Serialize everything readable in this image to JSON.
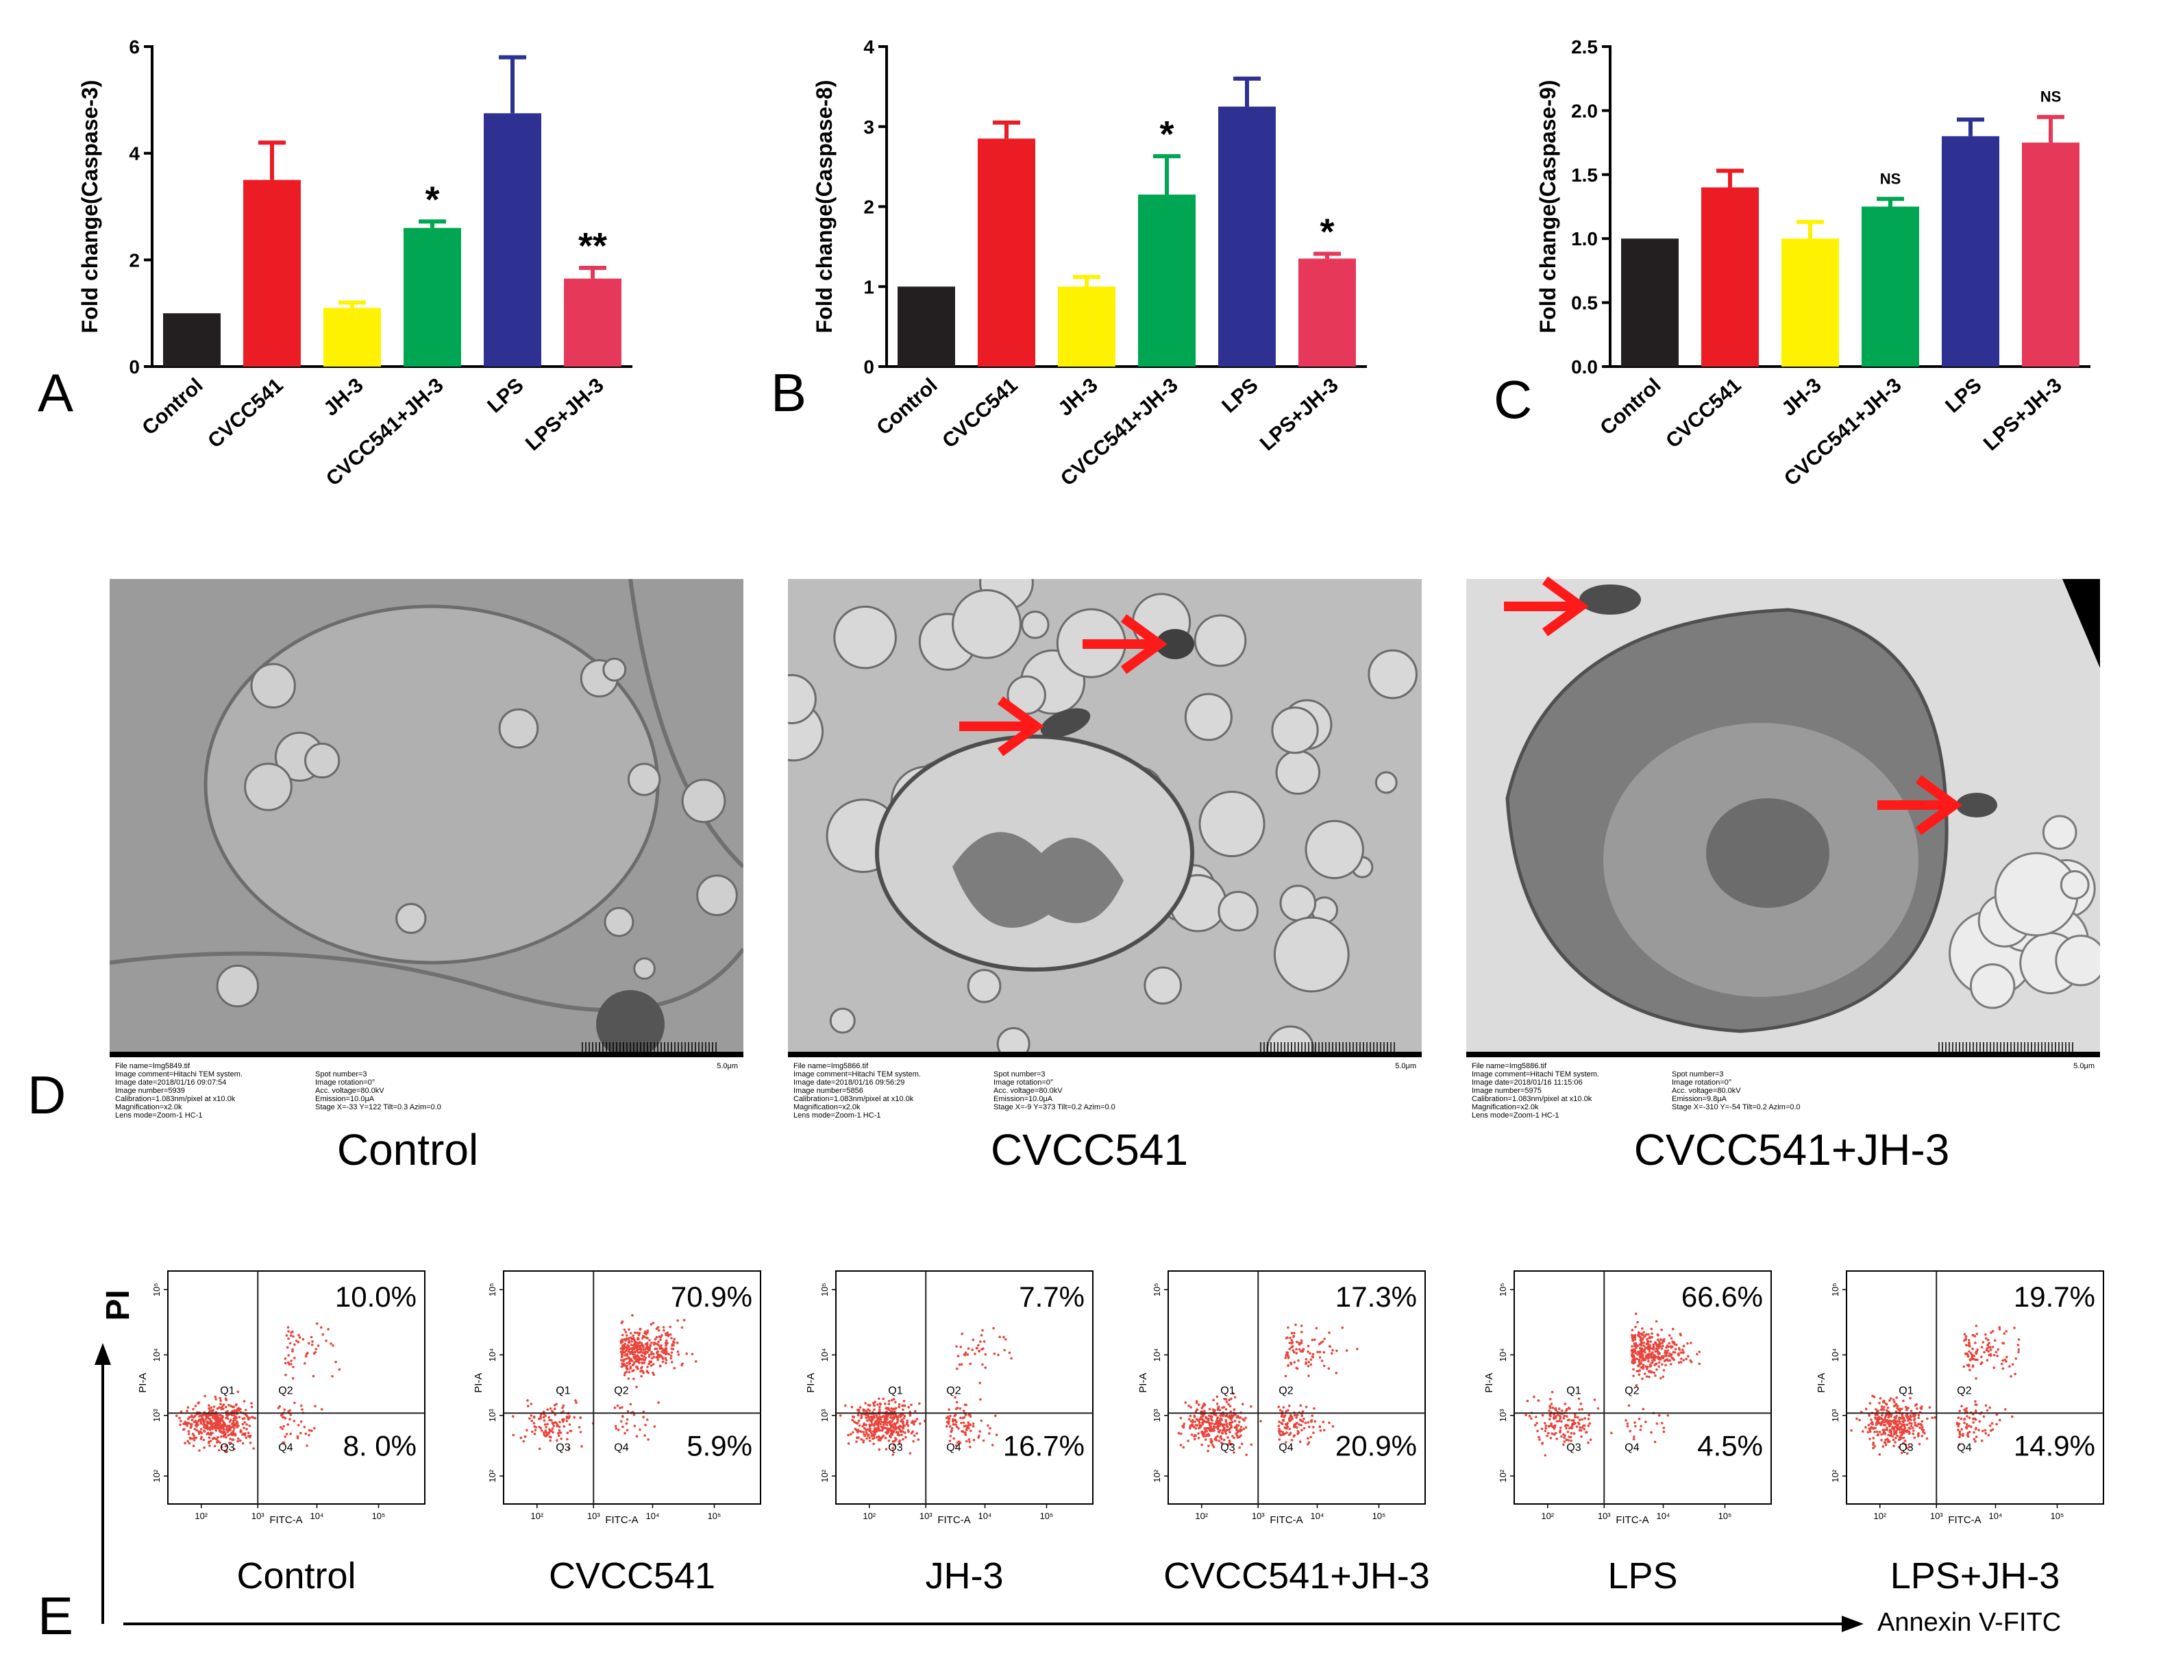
{
  "chart_data": [
    {
      "type": "bar",
      "panel": "A",
      "ylabel": "Fold change(Caspase-3)",
      "ylim": [
        0,
        6
      ],
      "yticks": [
        "0",
        "2",
        "4",
        "6"
      ],
      "categories": [
        "Control",
        "CVCC541",
        "JH-3",
        "CVCC541+JH-3",
        "LPS",
        "LPS+JH-3"
      ],
      "values": [
        1.0,
        3.5,
        1.1,
        2.6,
        4.75,
        1.65
      ],
      "errors": [
        0.0,
        0.7,
        0.1,
        0.12,
        1.05,
        0.2
      ],
      "significance": [
        "",
        "",
        "",
        "*",
        "",
        "**"
      ],
      "colors": [
        "#231f20",
        "#ec1c24",
        "#fff200",
        "#00a651",
        "#2e3192",
        "#e6395a"
      ]
    },
    {
      "type": "bar",
      "panel": "B",
      "ylabel": "Fold change(Caspase-8)",
      "ylim": [
        0,
        4
      ],
      "yticks": [
        "0",
        "1",
        "2",
        "3",
        "4"
      ],
      "categories": [
        "Control",
        "CVCC541",
        "JH-3",
        "CVCC541+JH-3",
        "LPS",
        "LPS+JH-3"
      ],
      "values": [
        1.0,
        2.85,
        1.0,
        2.15,
        3.25,
        1.35
      ],
      "errors": [
        0.0,
        0.2,
        0.12,
        0.48,
        0.35,
        0.06
      ],
      "significance": [
        "",
        "",
        "",
        "*",
        "",
        "*"
      ],
      "colors": [
        "#231f20",
        "#ec1c24",
        "#fff200",
        "#00a651",
        "#2e3192",
        "#e6395a"
      ]
    },
    {
      "type": "bar",
      "panel": "C",
      "ylabel": "Fold change(Caspase-9)",
      "ylim": [
        0,
        2.5
      ],
      "yticks": [
        "0.0",
        "0.5",
        "1.0",
        "1.5",
        "2.0",
        "2.5"
      ],
      "categories": [
        "Control",
        "CVCC541",
        "JH-3",
        "CVCC541+JH-3",
        "LPS",
        "LPS+JH-3"
      ],
      "values": [
        1.0,
        1.4,
        1.0,
        1.25,
        1.8,
        1.75
      ],
      "errors": [
        0.0,
        0.13,
        0.13,
        0.06,
        0.13,
        0.2
      ],
      "significance": [
        "",
        "",
        "",
        "NS",
        "",
        "NS"
      ],
      "colors": [
        "#231f20",
        "#ec1c24",
        "#fff200",
        "#00a651",
        "#2e3192",
        "#e6395a"
      ]
    }
  ],
  "panel_labels": {
    "A": "A",
    "B": "B",
    "C": "C",
    "D": "D",
    "E": "E"
  },
  "tem": {
    "scale_label": "5.0μm",
    "images": [
      {
        "caption": "Control",
        "meta_left": [
          "File name=Img5849.tif",
          "Image comment=Hitachi TEM system.",
          "Image date=2018/01/16 09:07:54",
          "Image number=5939",
          "Calibration=1.083nm/pixel at x10.0k",
          "Magnification=x2.0k",
          "Lens mode=Zoom-1 HC-1"
        ],
        "meta_right": [
          "Spot number=3",
          "Image rotation=0°",
          "Acc. voltage=80.0kV",
          "Emission=10.0μA",
          "Stage X=-33 Y=122 Tilt=0.3 Azim=0.0"
        ]
      },
      {
        "caption": "CVCC541",
        "meta_left": [
          "File name=Img5866.tif",
          "Image comment=Hitachi TEM system.",
          "Image date=2018/01/16 09:56:29",
          "Image number=5856",
          "Calibration=1.083nm/pixel at x10.0k",
          "Magnification=x2.0k",
          "Lens mode=Zoom-1 HC-1"
        ],
        "meta_right": [
          "Spot number=3",
          "Image rotation=0°",
          "Acc. voltage=80.0kV",
          "Emission=10.0μA",
          "Stage X=-9 Y=373 Tilt=0.2 Azim=0.0"
        ]
      },
      {
        "caption": "CVCC541+JH-3",
        "meta_left": [
          "File name=Img5886.tif",
          "Image comment=Hitachi TEM system.",
          "Image date=2018/01/16 11:15:06",
          "Image number=5975",
          "Calibration=1.083nm/pixel at x10.0k",
          "Magnification=x2.0k",
          "Lens mode=Zoom-1 HC-1"
        ],
        "meta_right": [
          "Spot number=3",
          "Image rotation=0°",
          "Acc. voltage=80.0kV",
          "Emission=9.8μA",
          "Stage X=-310 Y=-54 Tilt=0.2 Azim=0.0"
        ]
      }
    ]
  },
  "flow": {
    "y_axis_title": "PI",
    "x_axis_title": "Annexin V-FITC",
    "x_axis_label": "FITC-A",
    "y_axis_label": "PI-A",
    "quadrant_labels": [
      "Q1",
      "Q2",
      "Q3",
      "Q4"
    ],
    "y_ticks": [
      "10²",
      "10³",
      "10⁴",
      "10⁵"
    ],
    "x_ticks": [
      "10²",
      "10³",
      "10⁴",
      "10⁵"
    ],
    "plots": [
      {
        "caption": "Control",
        "q2_pct": "10.0%",
        "q4_pct": "8. 0%",
        "q2_fraction": 0.1,
        "q4_fraction": 0.08
      },
      {
        "caption": "CVCC541",
        "q2_pct": "70.9%",
        "q4_pct": "5.9%",
        "q2_fraction": 0.709,
        "q4_fraction": 0.059
      },
      {
        "caption": "JH-3",
        "q2_pct": "7.7%",
        "q4_pct": "16.7%",
        "q2_fraction": 0.077,
        "q4_fraction": 0.167
      },
      {
        "caption": "CVCC541+JH-3",
        "q2_pct": "17.3%",
        "q4_pct": "20.9%",
        "q2_fraction": 0.173,
        "q4_fraction": 0.209
      },
      {
        "caption": "LPS",
        "q2_pct": "66.6%",
        "q4_pct": "4.5%",
        "q2_fraction": 0.666,
        "q4_fraction": 0.045
      },
      {
        "caption": "LPS+JH-3",
        "q2_pct": "19.7%",
        "q4_pct": "14.9%",
        "q2_fraction": 0.197,
        "q4_fraction": 0.149
      }
    ]
  },
  "colors": {
    "dot": "#e8453c",
    "arrow": "#ff1a1a",
    "tem_bg": "#c9c9c9",
    "tem_cell": "#8a8a8a",
    "tem_nucleus": "#a9a9a9"
  }
}
